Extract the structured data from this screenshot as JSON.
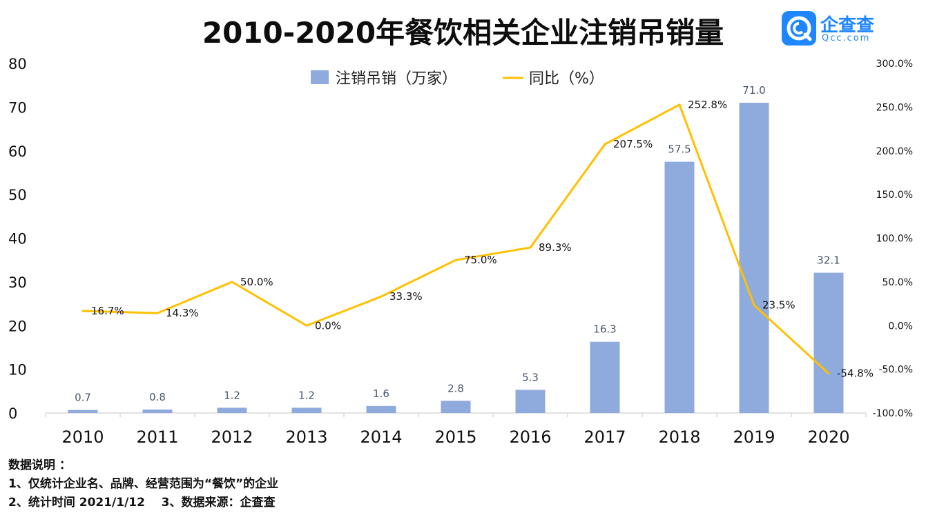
{
  "chart_data": {
    "type": "bar+line",
    "title": "2010-2020年餐饮相关企业注销吊销量",
    "categories": [
      "2010",
      "2011",
      "2012",
      "2013",
      "2014",
      "2015",
      "2016",
      "2017",
      "2018",
      "2019",
      "2020"
    ],
    "series": [
      {
        "name": "注销吊销（万家）",
        "type": "bar",
        "axis": "left",
        "color": "#8faadc",
        "values": [
          0.7,
          0.8,
          1.2,
          1.2,
          1.6,
          2.8,
          5.3,
          16.3,
          57.5,
          71.0,
          32.1
        ],
        "labels": [
          "0.7",
          "0.8",
          "1.2",
          "1.2",
          "1.6",
          "2.8",
          "5.3",
          "16.3",
          "57.5",
          "71.0",
          "32.1"
        ]
      },
      {
        "name": "同比（%）",
        "type": "line",
        "axis": "right",
        "color": "#ffc000",
        "values": [
          16.7,
          14.3,
          50.0,
          0.0,
          33.3,
          75.0,
          89.3,
          207.5,
          252.8,
          23.5,
          -54.8
        ],
        "labels": [
          "16.7%",
          "14.3%",
          "50.0%",
          "0.0%",
          "33.3%",
          "75.0%",
          "89.3%",
          "207.5%",
          "252.8%",
          "23.5%",
          "-54.8%"
        ]
      }
    ],
    "y_left": {
      "min": 0,
      "max": 80,
      "ticks": [
        "0",
        "10",
        "20",
        "30",
        "40",
        "50",
        "60",
        "70",
        "80"
      ]
    },
    "y_right": {
      "min": -100,
      "max": 300,
      "ticks": [
        "-100.0%",
        "-50.0%",
        "0.0%",
        "50.0%",
        "100.0%",
        "150.0%",
        "200.0%",
        "250.0%",
        "300.0%"
      ]
    },
    "legend_position": "top-center",
    "grid": false
  },
  "logo": {
    "name": "企查查",
    "domain": "Qcc.com"
  },
  "notes": {
    "heading": "数据说明 ：",
    "line1": "1、仅统计企业名、品牌、经营范围为“餐饮”的企业",
    "line2": "2、统计时间 2021/1/12    3、数据来源：企查查"
  }
}
